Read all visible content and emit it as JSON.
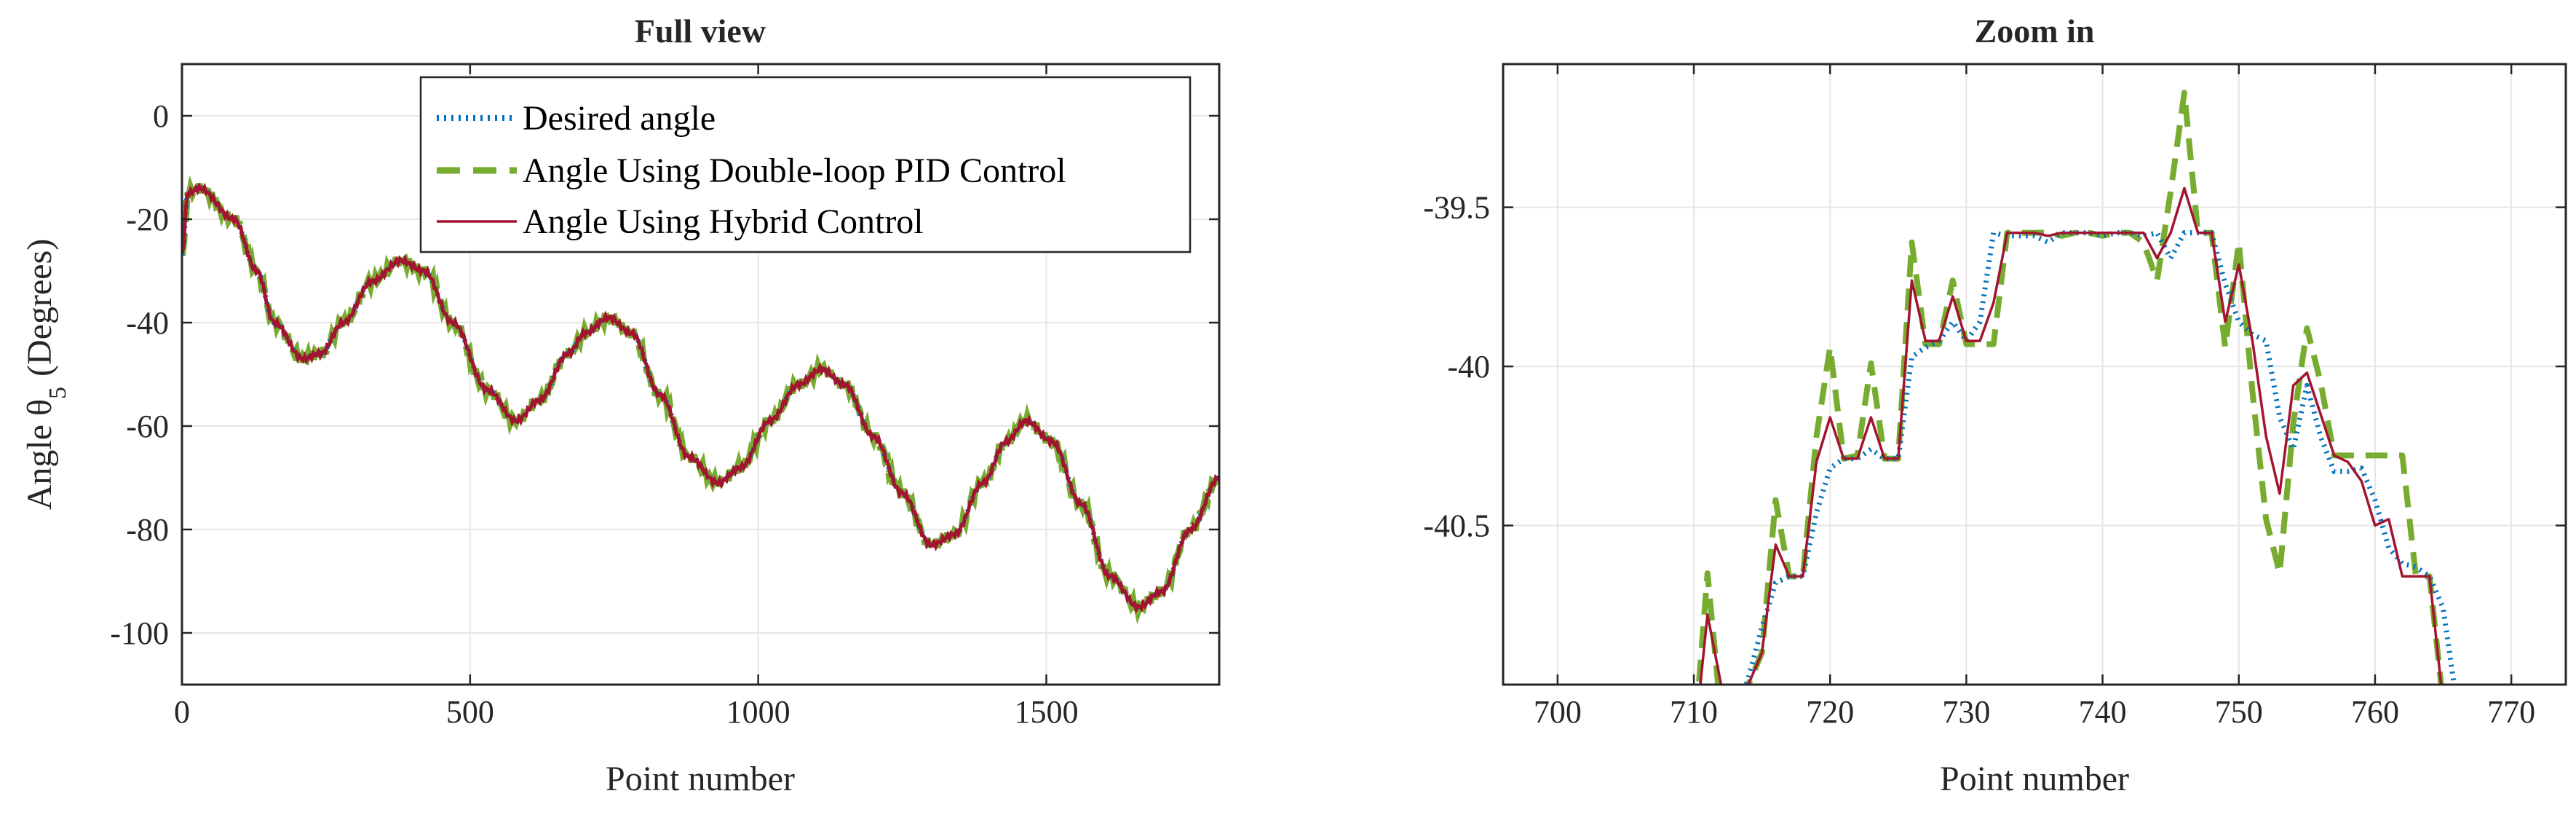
{
  "colors": {
    "desired": "#0072BD",
    "pid": "#77AC30",
    "hybrid": "#A2142F",
    "grid": "#E6E6E6",
    "axis": "#262626"
  },
  "chart_data": [
    {
      "type": "line",
      "title": "Full view",
      "xlabel": "Point number",
      "ylabel": "Angle θ",
      "ylabel_suffix": "(Degrees)",
      "ylabel_subscript": "5",
      "xlim": [
        0,
        1800
      ],
      "ylim": [
        -110,
        10
      ],
      "xticks": [
        0,
        500,
        1000,
        1500
      ],
      "yticks": [
        0,
        -20,
        -40,
        -60,
        -80,
        -100
      ],
      "grid": true,
      "legend": {
        "position": "top-right",
        "entries": [
          "Desired angle",
          "Angle Using Double-loop PID Control",
          "Angle Using Hybrid Control"
        ]
      },
      "keyframes": {
        "x": [
          0,
          10,
          30,
          90,
          130,
          160,
          210,
          240,
          280,
          330,
          380,
          420,
          470,
          530,
          580,
          620,
          670,
          700,
          740,
          780,
          830,
          880,
          930,
          970,
          1020,
          1070,
          1110,
          1150,
          1200,
          1250,
          1300,
          1340,
          1390,
          1430,
          1465,
          1510,
          1560,
          1610,
          1660,
          1700,
          1750,
          1800
        ],
        "y": [
          -27,
          -15,
          -14,
          -20,
          -30,
          -40,
          -47,
          -46,
          -40,
          -32,
          -28,
          -30,
          -40,
          -53,
          -59,
          -55,
          -46,
          -42,
          -39,
          -42,
          -54,
          -66,
          -71,
          -68,
          -59,
          -52,
          -49,
          -52,
          -62,
          -73,
          -83,
          -81,
          -71,
          -63,
          -59,
          -63,
          -75,
          -89,
          -95,
          -92,
          -80,
          -70
        ]
      },
      "series": [
        {
          "name": "Desired angle",
          "style": "dotted"
        },
        {
          "name": "Angle Using Double-loop PID Control",
          "style": "dashed"
        },
        {
          "name": "Angle Using Hybrid Control",
          "style": "solid"
        }
      ]
    },
    {
      "type": "line",
      "title": "Zoom in",
      "xlabel": "Point number",
      "ylabel": "",
      "xlim": [
        696,
        774
      ],
      "ylim": [
        -41,
        -39.05
      ],
      "xticks": [
        700,
        710,
        720,
        730,
        740,
        750,
        760,
        770
      ],
      "yticks": [
        -39.5,
        -40,
        -40.5
      ],
      "grid": true,
      "series": [
        {
          "name": "Desired angle",
          "style": "dotted",
          "x": [
            712,
            713,
            714,
            715,
            716,
            717,
            718,
            719,
            720,
            721,
            722,
            723,
            724,
            725,
            726,
            727,
            728,
            729,
            730,
            731,
            732,
            733,
            734,
            735,
            736,
            737,
            738,
            739,
            740,
            741,
            742,
            743,
            744,
            745,
            746,
            747,
            748,
            749,
            750,
            751,
            752,
            753,
            754,
            755,
            756,
            757,
            758,
            759,
            760,
            761,
            762,
            763,
            764,
            765,
            766
          ],
          "y": [
            -41.2,
            -41.1,
            -40.98,
            -40.82,
            -40.68,
            -40.66,
            -40.66,
            -40.46,
            -40.32,
            -40.29,
            -40.29,
            -40.26,
            -40.29,
            -40.29,
            -39.97,
            -39.94,
            -39.92,
            -39.86,
            -39.92,
            -39.86,
            -39.58,
            -39.59,
            -39.59,
            -39.59,
            -39.61,
            -39.58,
            -39.58,
            -39.58,
            -39.59,
            -39.58,
            -39.58,
            -39.59,
            -39.58,
            -39.66,
            -39.58,
            -39.58,
            -39.58,
            -39.74,
            -39.86,
            -39.9,
            -39.92,
            -40.16,
            -40.26,
            -40.06,
            -40.22,
            -40.33,
            -40.33,
            -40.32,
            -40.42,
            -40.57,
            -40.62,
            -40.63,
            -40.66,
            -40.76,
            -41.06
          ]
        },
        {
          "name": "Angle Using Double-loop PID Control",
          "style": "dashed",
          "x": [
            710,
            711,
            712,
            713,
            714,
            715,
            716,
            717,
            718,
            719,
            720,
            721,
            722,
            723,
            724,
            725,
            726,
            727,
            728,
            729,
            730,
            731,
            732,
            733,
            734,
            735,
            736,
            737,
            738,
            739,
            740,
            741,
            742,
            743,
            744,
            745,
            746,
            747,
            748,
            749,
            750,
            751,
            752,
            753,
            754,
            755,
            756,
            757,
            758,
            759,
            760,
            761,
            762,
            763,
            764,
            765
          ],
          "y": [
            -41.2,
            -40.65,
            -41.1,
            -41.2,
            -41.0,
            -40.9,
            -40.42,
            -40.66,
            -40.66,
            -40.22,
            -39.94,
            -40.29,
            -40.28,
            -39.99,
            -40.29,
            -40.29,
            -39.61,
            -39.93,
            -39.93,
            -39.73,
            -39.93,
            -39.93,
            -39.93,
            -39.58,
            -39.58,
            -39.58,
            -39.58,
            -39.59,
            -39.58,
            -39.58,
            -39.59,
            -39.58,
            -39.58,
            -39.61,
            -39.73,
            -39.45,
            -39.14,
            -39.58,
            -39.58,
            -39.94,
            -39.61,
            -40.08,
            -40.48,
            -40.65,
            -40.18,
            -39.88,
            -40.05,
            -40.28,
            -40.28,
            -40.28,
            -40.28,
            -40.28,
            -40.28,
            -40.66,
            -40.66,
            -41.06
          ]
        },
        {
          "name": "Angle Using Hybrid Control",
          "style": "solid",
          "x": [
            710,
            711,
            712,
            713,
            714,
            715,
            716,
            717,
            718,
            719,
            720,
            721,
            722,
            723,
            724,
            725,
            726,
            727,
            728,
            729,
            730,
            731,
            732,
            733,
            734,
            735,
            736,
            737,
            738,
            739,
            740,
            741,
            742,
            743,
            744,
            745,
            746,
            747,
            748,
            749,
            750,
            751,
            752,
            753,
            754,
            755,
            756,
            757,
            758,
            759,
            760,
            761,
            762,
            763,
            764,
            765
          ],
          "y": [
            -41.2,
            -40.78,
            -41.0,
            -41.2,
            -41.0,
            -40.9,
            -40.56,
            -40.66,
            -40.66,
            -40.3,
            -40.16,
            -40.29,
            -40.29,
            -40.16,
            -40.29,
            -40.29,
            -39.73,
            -39.92,
            -39.92,
            -39.78,
            -39.92,
            -39.92,
            -39.8,
            -39.58,
            -39.58,
            -39.58,
            -39.59,
            -39.58,
            -39.58,
            -39.58,
            -39.58,
            -39.58,
            -39.58,
            -39.58,
            -39.66,
            -39.58,
            -39.44,
            -39.58,
            -39.58,
            -39.86,
            -39.68,
            -39.92,
            -40.22,
            -40.4,
            -40.06,
            -40.02,
            -40.15,
            -40.28,
            -40.3,
            -40.36,
            -40.5,
            -40.48,
            -40.66,
            -40.66,
            -40.66,
            -41.06
          ]
        }
      ]
    }
  ]
}
